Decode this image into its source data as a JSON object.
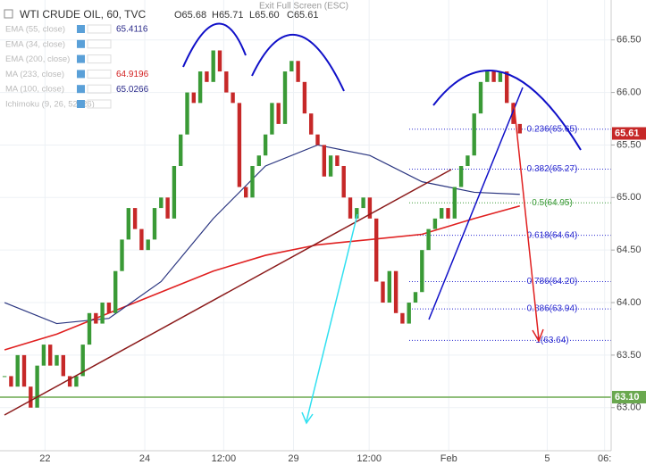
{
  "header": {
    "title": "WTI CRUDE OIL, 60, TVC",
    "ohlc": [
      "O65.68",
      "H65.71",
      "L65.60",
      "C65.61"
    ],
    "exit": "Exit Full Screen (ESC)",
    "indicators": [
      {
        "name": "EMA (55, close)",
        "value": 65.4116,
        "color": "#2a2a8a"
      },
      {
        "name": "EMA (34, close)"
      },
      {
        "name": "EMA (200, close)"
      },
      {
        "name": "MA (233, close)",
        "value": 64.9196,
        "color": "#d32020"
      },
      {
        "name": "MA (100, close)",
        "value": 65.0266,
        "color": "#2a2a8a"
      },
      {
        "name": "Ichimoku (9, 26, 52, 26)"
      }
    ]
  },
  "chart_data": {
    "type": "candlestick",
    "up_color": "#3a9a36",
    "down_color": "#c62828",
    "values": [
      63.3,
      63.2,
      63.5,
      63.2,
      63.0,
      63.4,
      63.6,
      63.4,
      63.5,
      63.3,
      63.2,
      63.3,
      63.6,
      63.9,
      63.8,
      64.0,
      63.9,
      64.3,
      64.6,
      64.9,
      64.7,
      64.5,
      64.6,
      64.9,
      65.0,
      64.8,
      65.3,
      65.6,
      66.0,
      65.9,
      66.2,
      66.1,
      66.4,
      66.2,
      66.0,
      65.9,
      65.1,
      65.0,
      65.3,
      65.4,
      65.6,
      65.9,
      65.7,
      66.2,
      66.3,
      66.1,
      65.8,
      65.6,
      65.5,
      65.2,
      65.4,
      65.3,
      65.0,
      64.8,
      64.9,
      65.0,
      64.8,
      64.2,
      64.0,
      64.3,
      63.9,
      63.8,
      64.0,
      64.1,
      64.5,
      64.7,
      64.8,
      64.9,
      64.8,
      65.1,
      65.3,
      65.4,
      65.8,
      66.1,
      66.2,
      66.1,
      66.2,
      65.9,
      65.7,
      65.61
    ],
    "lines": [
      {
        "name": "MA (233, close)",
        "color": "#e02020",
        "x": [
          0,
          8,
          16,
          24,
          32,
          40,
          48,
          56,
          64,
          72,
          79
        ],
        "values": [
          63.55,
          63.7,
          63.9,
          64.1,
          64.3,
          64.45,
          64.55,
          64.6,
          64.65,
          64.8,
          64.92
        ]
      },
      {
        "name": "MA (100, close)",
        "color": "#2a3580",
        "x": [
          0,
          8,
          16,
          24,
          32,
          40,
          48,
          56,
          64,
          72,
          79
        ],
        "values": [
          64.0,
          63.8,
          63.85,
          64.2,
          64.8,
          65.3,
          65.5,
          65.4,
          65.15,
          65.05,
          65.03
        ]
      }
    ],
    "xlim": [
      -0.7,
      93
    ],
    "xticks": [
      {
        "value": 6.2,
        "label": "22"
      },
      {
        "value": 21.5,
        "label": "24"
      },
      {
        "value": 33.6,
        "label": "12:00"
      },
      {
        "value": 44.3,
        "label": "29"
      },
      {
        "value": 55.9,
        "label": "12:00"
      },
      {
        "value": 68.1,
        "label": "Feb"
      },
      {
        "value": 83.2,
        "label": "5"
      },
      {
        "value": 92,
        "label": "06:"
      }
    ],
    "ylim": [
      62.59,
      66.88
    ],
    "yticks": [
      {
        "value": 63,
        "label": "63.00"
      },
      {
        "value": 63.5,
        "label": "63.50"
      },
      {
        "value": 64,
        "label": "64.00"
      },
      {
        "value": 64.5,
        "label": "64.50"
      },
      {
        "value": 65,
        "label": "65.00"
      },
      {
        "value": 65.5,
        "label": "65.50"
      },
      {
        "value": 66,
        "label": "66.00"
      },
      {
        "value": 66.5,
        "label": "66.50"
      }
    ],
    "fib": [
      {
        "value": 65.65,
        "label": "0.236(65.65)"
      },
      {
        "value": 65.27,
        "label": "0.382(65.27)"
      },
      {
        "value": 64.95,
        "label": "0.5(64.95)"
      },
      {
        "value": 64.64,
        "label": "0.618(64.64)"
      },
      {
        "value": 64.2,
        "label": "0.786(64.20)"
      },
      {
        "value": 63.94,
        "label": "0.886(63.94)"
      },
      {
        "value": 63.64,
        "label": "1(63.64)"
      }
    ],
    "last_price": 65.61,
    "support": {
      "value": 63.1,
      "label": "63.10"
    },
    "grid": true
  }
}
